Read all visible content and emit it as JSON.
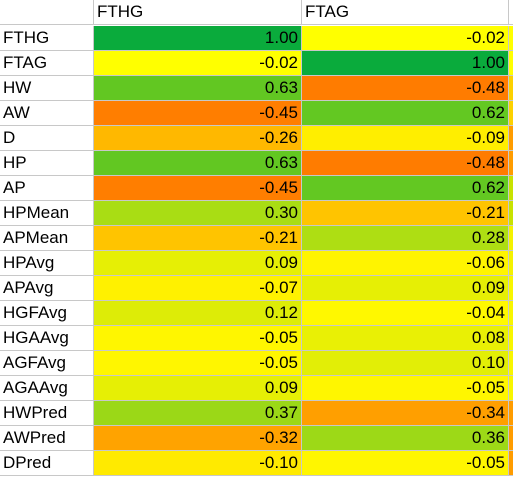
{
  "columns": [
    "",
    "FTHG",
    "FTAG"
  ],
  "rows": [
    {
      "label": "FTHG",
      "v1": "1.00",
      "v2": "-0.02",
      "c1": "#0aab3c",
      "c2": "#ffff00",
      "c3": "#ffff00"
    },
    {
      "label": "FTAG",
      "v1": "-0.02",
      "v2": "1.00",
      "c1": "#ffff00",
      "c2": "#0aab3c",
      "c3": "#ffff00"
    },
    {
      "label": "HW",
      "v1": "0.63",
      "v2": "-0.48",
      "c1": "#62c722",
      "c2": "#ff7c00",
      "c3": "#fcd100"
    },
    {
      "label": "AW",
      "v1": "-0.45",
      "v2": "0.62",
      "c1": "#ff7e00",
      "c2": "#63c822",
      "c3": "#fcd100"
    },
    {
      "label": "D",
      "v1": "-0.26",
      "v2": "-0.09",
      "c1": "#ffb800",
      "c2": "#ffee00",
      "c3": "#ff9c00"
    },
    {
      "label": "HP",
      "v1": "0.63",
      "v2": "-0.48",
      "c1": "#62c722",
      "c2": "#ff7c00",
      "c3": "#ff9c00"
    },
    {
      "label": "AP",
      "v1": "-0.45",
      "v2": "0.62",
      "c1": "#ff7e00",
      "c2": "#63c822",
      "c3": "#c8e200"
    },
    {
      "label": "HPMean",
      "v1": "0.30",
      "v2": "-0.21",
      "c1": "#a9dd14",
      "c2": "#ffc400",
      "c3": "#c8e200"
    },
    {
      "label": "APMean",
      "v1": "-0.21",
      "v2": "0.28",
      "c1": "#ffc400",
      "c2": "#aede13",
      "c3": "#f4f200"
    },
    {
      "label": "HPAvg",
      "v1": "0.09",
      "v2": "-0.06",
      "c1": "#e6ef05",
      "c2": "#fff400",
      "c3": "#f4f200"
    },
    {
      "label": "APAvg",
      "v1": "-0.07",
      "v2": "0.09",
      "c1": "#fff100",
      "c2": "#e6ef05",
      "c3": "#f8f600"
    },
    {
      "label": "HGFAvg",
      "v1": "0.12",
      "v2": "-0.04",
      "c1": "#ddec07",
      "c2": "#fff800",
      "c3": "#f8f600"
    },
    {
      "label": "HGAAvg",
      "v1": "-0.05",
      "v2": "0.08",
      "c1": "#fff600",
      "c2": "#e9f005",
      "c3": "#f8f600"
    },
    {
      "label": "AGFAvg",
      "v1": "-0.05",
      "v2": "0.10",
      "c1": "#fff600",
      "c2": "#e2ee06",
      "c3": "#f8f600"
    },
    {
      "label": "AGAAvg",
      "v1": "0.09",
      "v2": "-0.05",
      "c1": "#e6ef05",
      "c2": "#fff600",
      "c3": "#f8f600"
    },
    {
      "label": "HWPred",
      "v1": "0.37",
      "v2": "-0.34",
      "c1": "#9bd817",
      "c2": "#ff9f00",
      "c3": "#ff9c00"
    },
    {
      "label": "AWPred",
      "v1": "-0.32",
      "v2": "0.36",
      "c1": "#ffa300",
      "c2": "#9dd917",
      "c3": "#ff9c00"
    },
    {
      "label": "DPred",
      "v1": "-0.10",
      "v2": "-0.05",
      "c1": "#ffea00",
      "c2": "#fff600",
      "c3": "#ff9c00"
    }
  ]
}
